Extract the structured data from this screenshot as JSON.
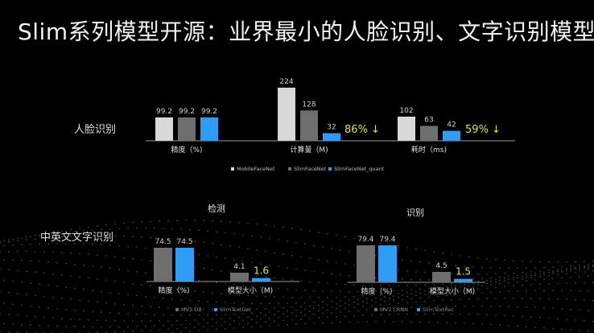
{
  "title": "Slim系列模型开源：业界最小的人脸识别、文字识别模型",
  "rows": {
    "face": "人脸识别",
    "text": "中英文文字识别"
  },
  "sections": {
    "detect": "检测",
    "recog": "识别"
  },
  "colors": {
    "gray_light": "#d8d8d8",
    "gray_dark": "#6e6e6e",
    "blue": "#2f9df5",
    "highlight": "#dde44a",
    "axis": "#9a9a9a"
  },
  "chart_data": [
    {
      "type": "bar",
      "group": "face",
      "categories": [
        "精度（%)"
      ],
      "series": [
        {
          "name": "MobileFaceNet",
          "values": [
            99.2
          ]
        },
        {
          "name": "SlimFaceNet",
          "values": [
            99.2
          ]
        },
        {
          "name": "SlimFaceNet_quant",
          "values": [
            99.2
          ]
        }
      ]
    },
    {
      "type": "bar",
      "group": "face",
      "categories": [
        "计算量（M)"
      ],
      "series": [
        {
          "name": "MobileFaceNet",
          "values": [
            224
          ]
        },
        {
          "name": "SlimFaceNet",
          "values": [
            128
          ]
        },
        {
          "name": "SlimFaceNet_quant",
          "values": [
            32
          ]
        }
      ],
      "annotation": "86% ↓"
    },
    {
      "type": "bar",
      "group": "face",
      "categories": [
        "耗时（ms)"
      ],
      "series": [
        {
          "name": "MobileFaceNet",
          "values": [
            102
          ]
        },
        {
          "name": "SlimFaceNet",
          "values": [
            63
          ]
        },
        {
          "name": "SlimFaceNet_quant",
          "values": [
            42
          ]
        }
      ],
      "annotation": "59% ↓"
    },
    {
      "type": "bar",
      "group": "detect",
      "categories": [
        "精度（%)",
        "模型大小（M)"
      ],
      "series": [
        {
          "name": "MV3 DB",
          "values": [
            74.5,
            4.1
          ]
        },
        {
          "name": "SlimTextDet",
          "values": [
            74.5,
            1.6
          ]
        }
      ]
    },
    {
      "type": "bar",
      "group": "recog",
      "categories": [
        "精度（%)",
        "模型大小（M)"
      ],
      "series": [
        {
          "name": "MV3 CRNN",
          "values": [
            79.4,
            4.5
          ]
        },
        {
          "name": "SlimTextRec",
          "values": [
            79.4,
            1.5
          ]
        }
      ]
    }
  ]
}
